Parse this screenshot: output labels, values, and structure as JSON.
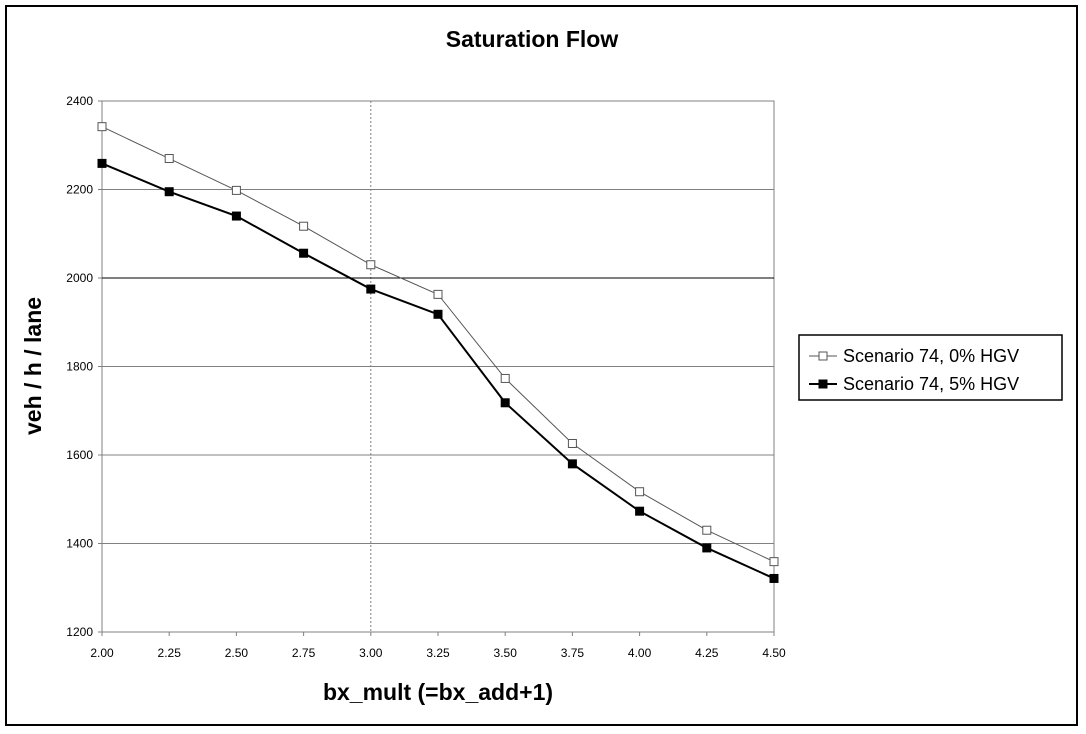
{
  "chart_data": {
    "type": "line",
    "title": "Saturation Flow",
    "xlabel": "bx_mult (=bx_add+1)",
    "ylabel": "veh / h / lane",
    "x": [
      2.0,
      2.25,
      2.5,
      2.75,
      3.0,
      3.25,
      3.5,
      3.75,
      4.0,
      4.25,
      4.5
    ],
    "x_tick_labels": [
      "2.00",
      "2.25",
      "2.50",
      "2.75",
      "3.00",
      "3.25",
      "3.50",
      "3.75",
      "4.00",
      "4.25",
      "4.50"
    ],
    "xlim": [
      2.0,
      4.5
    ],
    "ylim": [
      1200,
      2400
    ],
    "y_ticks": [
      1200,
      1400,
      1600,
      1800,
      2000,
      2200,
      2400
    ],
    "y_tick_labels": [
      "1200",
      "1400",
      "1600",
      "1800",
      "2000",
      "2200",
      "2400"
    ],
    "grid": "horizontal",
    "reference_lines": {
      "x": 3.0,
      "y": 2000
    },
    "legend_position": "right",
    "series": [
      {
        "name": "Scenario 74, 0% HGV",
        "marker": "open-square",
        "color": "#555555",
        "values": [
          2342,
          2270,
          2198,
          2117,
          2030,
          1963,
          1773,
          1626,
          1517,
          1430,
          1359
        ]
      },
      {
        "name": "Scenario 74, 5% HGV",
        "marker": "filled-square",
        "color": "#000000",
        "values": [
          2259,
          2195,
          2140,
          2056,
          1975,
          1918,
          1718,
          1580,
          1473,
          1390,
          1321
        ]
      }
    ]
  }
}
